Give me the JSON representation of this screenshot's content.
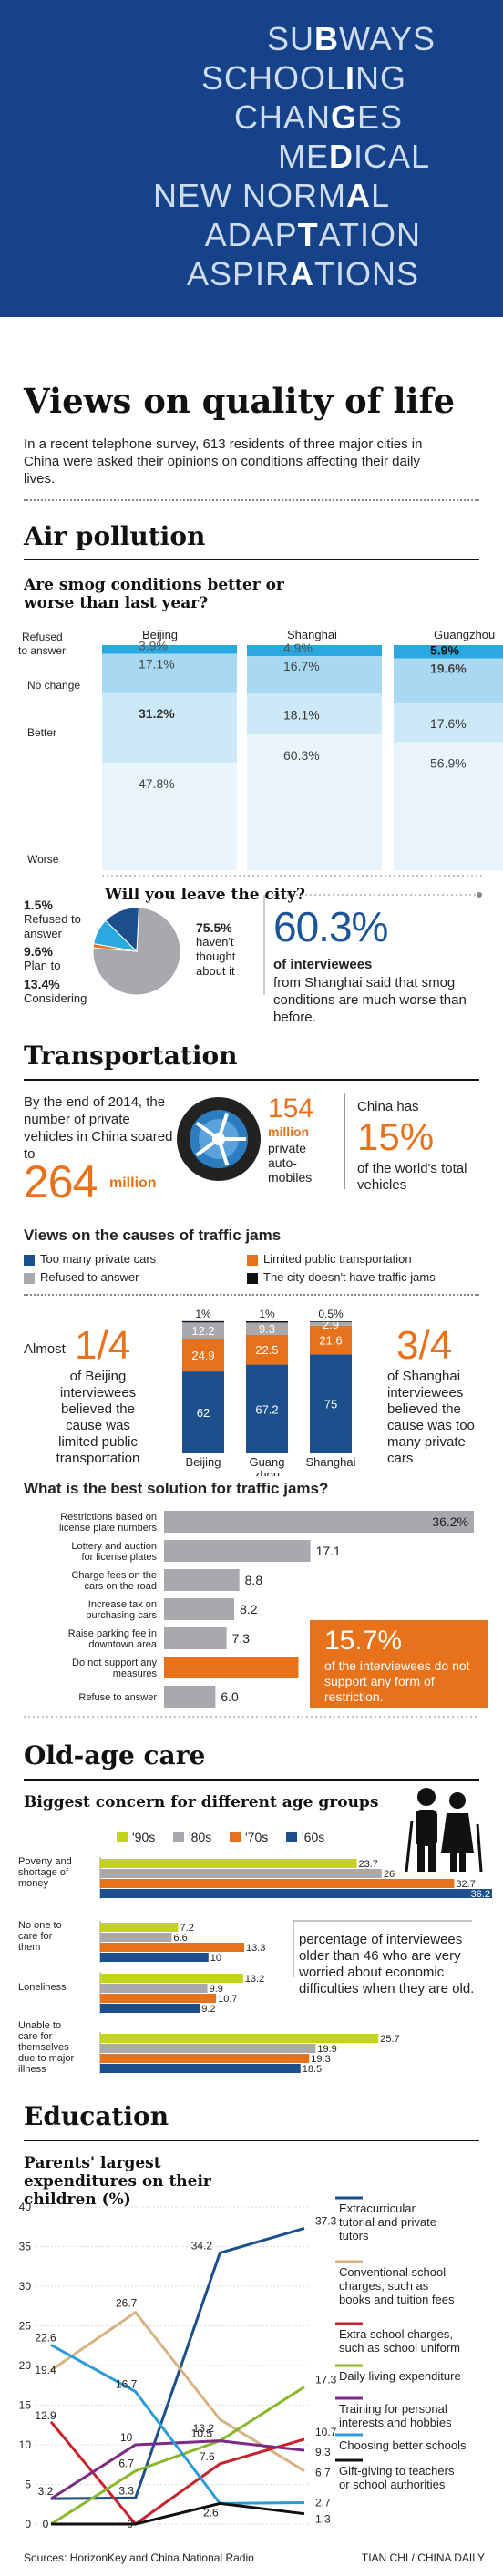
{
  "header": {
    "lines": [
      {
        "pre": "SU",
        "hl": "B",
        "post": "WAYS"
      },
      {
        "pre": "SCHOOL",
        "hl": "I",
        "post": "NG"
      },
      {
        "pre": "CHAN",
        "hl": "G",
        "post": "ES"
      },
      {
        "pre": "ME",
        "hl": "D",
        "post": "ICAL"
      },
      {
        "pre": "NEW NORM",
        "hl": "A",
        "post": "L"
      },
      {
        "pre": "ADAP",
        "hl": "T",
        "post": "ATION"
      },
      {
        "pre": "ASPIR",
        "hl": "A",
        "post": "TIONS"
      }
    ]
  },
  "intro": {
    "title": "Views on quality of life",
    "text": "In a recent telephone survey, 613 residents of three major cities in China were asked their opinions on conditions affecting their daily lives."
  },
  "air": {
    "section_title": "Air pollution",
    "question": "Are smog conditions better or worse than last year?",
    "cities": [
      "Beijing",
      "Shanghai",
      "Guangzhou"
    ],
    "rows": [
      "Refused to answer",
      "No change",
      "Better",
      "Worse"
    ],
    "leave": {
      "question": "Will you leave the city?",
      "refused_pct": "1.5%",
      "refused_label": "Refused to answer",
      "plan_pct": "9.6%",
      "plan_label": "Plan to",
      "considering_pct": "13.4%",
      "considering_label": "Considering",
      "havent_pct": "75.5%",
      "havent_label": "haven't thought about it"
    },
    "stat_value": "60.3%",
    "stat_bold": "of interviewees",
    "stat_text": "from Shanghai said that smog conditions are much worse than before."
  },
  "transport": {
    "section_title": "Transportation",
    "intro_text": "By the end of 2014, the number of private vehicles in China soared to",
    "big_number": "264",
    "big_unit": "million",
    "tire_number": "154",
    "tire_unit": "million",
    "tire_text": "private auto-mobiles",
    "share_pre": "China has",
    "share_value": "15%",
    "share_text": "of the world's total vehicles",
    "causes_title": "Views on the causes of traffic jams",
    "legend": [
      "Too many private cars",
      "Limited public transportation",
      "Refused to answer",
      "The city doesn't have traffic jams"
    ],
    "left_pre": "Almost",
    "left_value": "1/4",
    "left_text": "of Beijing interviewees believed the cause was limited public transportation",
    "right_value": "3/4",
    "right_text": "of Shanghai interviewees believed the cause was too many private cars",
    "solution_title": "What is the best solution for traffic jams?",
    "callout_value": "15.7%",
    "callout_text": "of the interviewees do not support any form of restriction."
  },
  "oldage": {
    "section_title": "Old-age care",
    "question": "Biggest concern for different age groups",
    "note": "percentage of interviewees older than 46 who are very worried about economic difficulties when they are old."
  },
  "education": {
    "section_title": "Education",
    "question": "Parents' largest expenditures on their children (%)",
    "legend": [
      "Extracurricular tutorial and private tutors",
      "Conventional school charges, such as books and tuition fees",
      "Extra school charges, such as school uniform",
      "Daily living expenditure",
      "Training for personal interests and hobbies",
      "Choosing better schools",
      "Gift-giving to teachers or school authorities"
    ]
  },
  "footer": {
    "source": "Sources: HorizonKey and China National Radio",
    "credit": "TIAN CHI / CHINA DAILY"
  },
  "chart_data": [
    {
      "type": "bar",
      "title": "Are smog conditions better or worse than last year?",
      "categories": [
        "Beijing",
        "Shanghai",
        "Guangzhou"
      ],
      "series": [
        {
          "name": "Refused to answer",
          "values": [
            3.9,
            4.9,
            5.9
          ]
        },
        {
          "name": "No change",
          "values": [
            17.1,
            16.7,
            19.6
          ]
        },
        {
          "name": "Better",
          "values": [
            31.2,
            18.1,
            17.6
          ]
        },
        {
          "name": "Worse",
          "values": [
            47.8,
            60.3,
            56.9
          ]
        }
      ],
      "stacked": true
    },
    {
      "type": "pie",
      "title": "Will you leave the city?",
      "labels": [
        "Refused to answer",
        "Plan to",
        "Considering",
        "haven't thought about it"
      ],
      "values": [
        1.5,
        9.6,
        13.4,
        75.5
      ]
    },
    {
      "type": "bar",
      "title": "Views on the causes of traffic jams",
      "categories": [
        "Beijing",
        "Guangzhou",
        "Shanghai"
      ],
      "category_labels": [
        "Beijing",
        "Guang zhou",
        "Shanghai"
      ],
      "series": [
        {
          "name": "Too many private cars",
          "values": [
            62,
            67.2,
            75
          ]
        },
        {
          "name": "Limited public transportation",
          "values": [
            24.9,
            22.5,
            21.6
          ]
        },
        {
          "name": "Refused to answer",
          "values": [
            12.2,
            9.3,
            2.9
          ]
        },
        {
          "name": "The city doesn't have traffic jams",
          "values": [
            1,
            1,
            0.5
          ]
        }
      ],
      "value_labels": [
        [
          "62",
          "24.9",
          "12.2",
          "1%"
        ],
        [
          "67.2",
          "22.5",
          "9.3",
          "1%"
        ],
        [
          "75",
          "21.6",
          "2.9",
          "0.5%"
        ]
      ],
      "stacked": true
    },
    {
      "type": "bar",
      "orientation": "horizontal",
      "title": "What is the best solution for traffic jams?",
      "categories": [
        "Restrictions based on license plate numbers",
        "Lottery and auction for license plates",
        "Charge fees on the cars on the road",
        "Increase tax on purchasing cars",
        "Raise parking fee in downtown area",
        "Do not support any measures",
        "Refuse to answer"
      ],
      "values": [
        36.2,
        17.1,
        8.8,
        8.2,
        7.3,
        15.7,
        6.0
      ],
      "value_labels": [
        "36.2%",
        "17.1",
        "8.8",
        "8.2",
        "7.3",
        "",
        "6.0"
      ],
      "highlight_index": 5
    },
    {
      "type": "bar",
      "orientation": "horizontal",
      "title": "Biggest concern for different age groups",
      "categories": [
        "Poverty and shortage of money",
        "No one to care for them",
        "Loneliness",
        "Unable to care for themselves due to major illness"
      ],
      "series": [
        {
          "name": "'90s",
          "values": [
            23.7,
            7.2,
            13.2,
            25.7
          ]
        },
        {
          "name": "'80s",
          "values": [
            26,
            6.6,
            9.9,
            19.9
          ]
        },
        {
          "name": "'70s",
          "values": [
            32.7,
            13.3,
            10.7,
            19.3
          ]
        },
        {
          "name": "'60s",
          "values": [
            36.2,
            10,
            9.2,
            18.5
          ]
        }
      ],
      "colors": [
        "#c4d41b",
        "#a7a9ac",
        "#e8721c",
        "#1c4f8c"
      ]
    },
    {
      "type": "line",
      "title": "Parents' largest expenditures on their children (%)",
      "x": [
        0,
        1,
        2,
        3
      ],
      "ylim": [
        0,
        40
      ],
      "yticks": [
        0,
        5,
        10,
        15,
        20,
        25,
        30,
        35,
        40
      ],
      "series": [
        {
          "name": "Extracurricular tutorial and private tutors",
          "values": [
            3.2,
            3.3,
            34.2,
            37.3
          ],
          "color": "#1c4f8c"
        },
        {
          "name": "Conventional school charges, such as books and tuition fees",
          "values": [
            19.4,
            26.7,
            13.2,
            6.7
          ],
          "color": "#d9b282"
        },
        {
          "name": "Extra school charges, such as school uniform",
          "values": [
            12.9,
            0,
            7.6,
            10.7
          ],
          "color": "#c8232c"
        },
        {
          "name": "Daily living expenditure",
          "values": [
            0,
            6.7,
            10.5,
            17.3
          ],
          "color": "#8ab82a"
        },
        {
          "name": "Training for personal interests and hobbies",
          "values": [
            3.2,
            10,
            10.5,
            9.3
          ],
          "color": "#7b2b83"
        },
        {
          "name": "Choosing better schools",
          "values": [
            22.6,
            16.7,
            2.6,
            2.7
          ],
          "color": "#2c9cd8"
        },
        {
          "name": "Gift-giving to teachers or school authorities",
          "values": [
            0,
            0,
            2.6,
            1.3
          ],
          "color": "#111111"
        }
      ],
      "labels_shown": [
        "22.6",
        "19.4",
        "12.9",
        "3.2",
        "0",
        "26.7",
        "16.7",
        "10",
        "6.7",
        "3.3",
        "0",
        "34.2",
        "13.2",
        "10.5",
        "7.6",
        "2.6",
        "37.3",
        "17.3",
        "10.7",
        "9.3",
        "6.7",
        "2.7",
        "1.3"
      ]
    }
  ]
}
